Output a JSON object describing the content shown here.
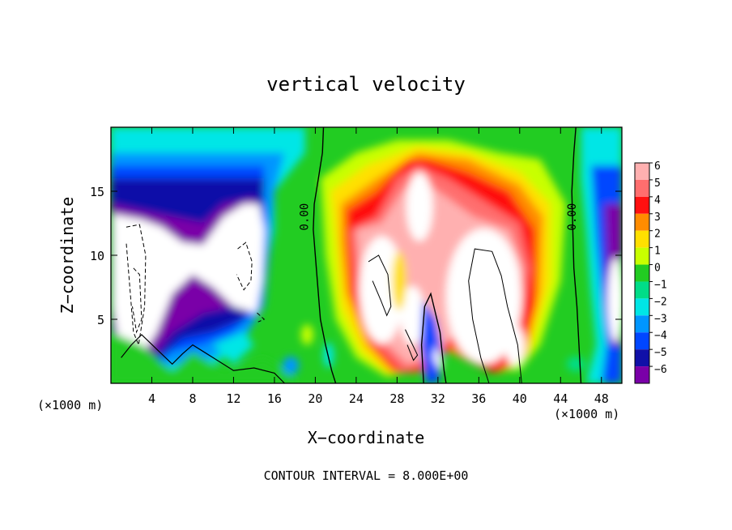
{
  "chart_data": {
    "type": "heatmap",
    "title": "vertical velocity",
    "xlabel": "X−coordinate",
    "ylabel": "Z−coordinate",
    "x_unit_left": "(×1000 m)",
    "x_unit_right": "(×1000 m)",
    "footer": "CONTOUR INTERVAL = 8.000E+00",
    "xlim": [
      0,
      50
    ],
    "ylim": [
      0,
      20
    ],
    "x_ticks": [
      4,
      8,
      12,
      16,
      20,
      24,
      28,
      32,
      36,
      40,
      44,
      48
    ],
    "x_tick_labels": [
      "4",
      "8",
      "12",
      "16",
      "20",
      "24",
      "28",
      "32",
      "36",
      "40",
      "44",
      "48"
    ],
    "y_ticks": [
      5,
      10,
      15
    ],
    "y_tick_labels": [
      "5",
      "10",
      "15"
    ],
    "contour_labels": [
      {
        "text": "0.00",
        "x": 19.3,
        "y": 13.0
      },
      {
        "text": "0.00",
        "x": 45.5,
        "y": 13.0
      }
    ],
    "colorbar": {
      "levels": [
        6,
        5,
        4,
        3,
        2,
        1,
        0,
        -1,
        -2,
        -3,
        -4,
        -5,
        -6
      ],
      "labels": [
        "6",
        "5",
        "4",
        "3",
        "2",
        "1",
        "0",
        "−1",
        "−2",
        "−3",
        "−4",
        "−5",
        "−6"
      ],
      "colors": [
        "#ffb0b0",
        "#ff6e6e",
        "#ff1010",
        "#ff8c00",
        "#ffe000",
        "#c8ff00",
        "#22cc22",
        "#00dd88",
        "#00e6e6",
        "#0096ff",
        "#0046ff",
        "#1010a8",
        "#7a00a8"
      ],
      "over_color": "#ffffff",
      "under_color": "#ffffff"
    }
  }
}
